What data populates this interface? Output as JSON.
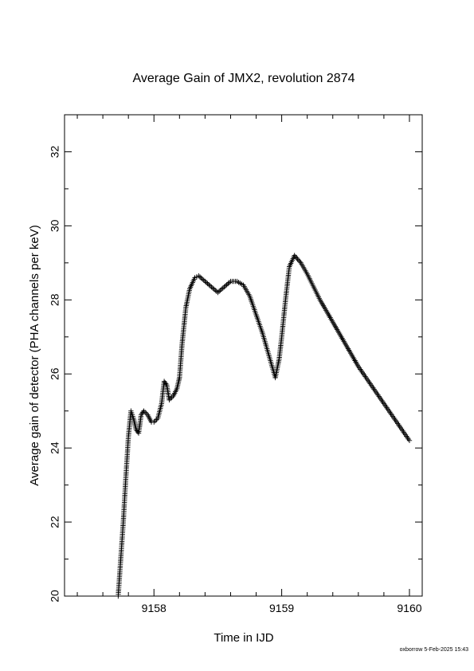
{
  "chart_data": {
    "type": "scatter",
    "title": "Average Gain of JMX2, revolution 2874",
    "xlabel": "Time in IJD",
    "ylabel": "Average gain of detector (PHA channels per keV)",
    "xlim": [
      9157.3,
      9160.1
    ],
    "ylim": [
      20,
      33
    ],
    "xticks": [
      9158,
      9159,
      9160
    ],
    "xtick_labels": [
      "9158",
      "9159",
      "9160"
    ],
    "yticks": [
      20,
      22,
      24,
      26,
      28,
      30,
      32
    ],
    "ytick_labels": [
      "20",
      "22",
      "24",
      "26",
      "28",
      "30",
      "32"
    ],
    "marker": "plus",
    "marker_color": "#000000",
    "grid": false,
    "legend": "none",
    "series": [
      {
        "points": [
          [
            9157.72,
            20.0
          ],
          [
            9157.74,
            21.0
          ],
          [
            9157.76,
            22.0
          ],
          [
            9157.78,
            23.2
          ],
          [
            9157.8,
            24.3
          ],
          [
            9157.82,
            25.0
          ],
          [
            9157.84,
            24.8
          ],
          [
            9157.86,
            24.5
          ],
          [
            9157.88,
            24.4
          ],
          [
            9157.9,
            24.9
          ],
          [
            9157.92,
            25.0
          ],
          [
            9157.95,
            24.9
          ],
          [
            9157.98,
            24.7
          ],
          [
            9158.0,
            24.7
          ],
          [
            9158.03,
            24.8
          ],
          [
            9158.06,
            25.2
          ],
          [
            9158.08,
            25.8
          ],
          [
            9158.1,
            25.7
          ],
          [
            9158.12,
            25.3
          ],
          [
            9158.15,
            25.4
          ],
          [
            9158.18,
            25.6
          ],
          [
            9158.2,
            25.9
          ],
          [
            9158.22,
            26.8
          ],
          [
            9158.25,
            27.8
          ],
          [
            9158.28,
            28.3
          ],
          [
            9158.32,
            28.6
          ],
          [
            9158.35,
            28.65
          ],
          [
            9158.4,
            28.5
          ],
          [
            9158.45,
            28.35
          ],
          [
            9158.5,
            28.2
          ],
          [
            9158.55,
            28.35
          ],
          [
            9158.6,
            28.5
          ],
          [
            9158.65,
            28.5
          ],
          [
            9158.7,
            28.4
          ],
          [
            9158.75,
            28.1
          ],
          [
            9158.8,
            27.6
          ],
          [
            9158.85,
            27.1
          ],
          [
            9158.9,
            26.5
          ],
          [
            9158.95,
            25.9
          ],
          [
            9158.98,
            26.4
          ],
          [
            9159.0,
            27.0
          ],
          [
            9159.03,
            28.0
          ],
          [
            9159.06,
            28.9
          ],
          [
            9159.1,
            29.2
          ],
          [
            9159.15,
            29.0
          ],
          [
            9159.2,
            28.7
          ],
          [
            9159.3,
            28.0
          ],
          [
            9159.4,
            27.4
          ],
          [
            9159.5,
            26.8
          ],
          [
            9159.6,
            26.2
          ],
          [
            9159.7,
            25.7
          ],
          [
            9159.8,
            25.2
          ],
          [
            9159.9,
            24.7
          ],
          [
            9160.0,
            24.2
          ]
        ]
      }
    ]
  },
  "footer": {
    "credit": "oxborrow  5-Feb-2025 15:43"
  }
}
